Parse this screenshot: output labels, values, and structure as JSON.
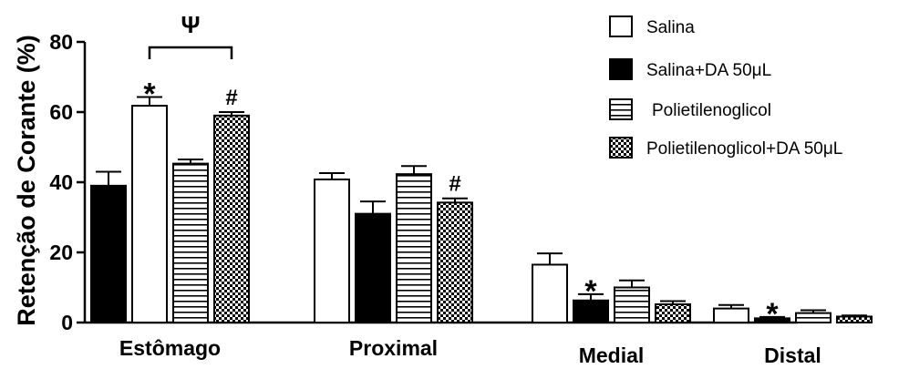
{
  "chart_data": {
    "type": "bar",
    "title": "",
    "xlabel": "",
    "ylabel": "Retenção de Corante (%)",
    "ylim": [
      0,
      80
    ],
    "yticks": [
      0,
      20,
      40,
      60,
      80
    ],
    "grid": false,
    "legend_position": "top-right",
    "categories": [
      "Estômago",
      "Proximal",
      "Medial",
      "Distal"
    ],
    "series": [
      {
        "name": "Salina",
        "fill": "white",
        "values": [
          61.8,
          40.8,
          16.5,
          4.0
        ],
        "errors": [
          2.5,
          1.8,
          3.2,
          1.0
        ]
      },
      {
        "name": "Salina+DA 50μL",
        "fill": "black",
        "values": [
          39.0,
          31.0,
          6.3,
          1.2
        ],
        "errors": [
          4.0,
          3.5,
          1.8,
          0.4
        ]
      },
      {
        "name": "Polietilenoglicol",
        "fill": "horizontal-stripes",
        "values": [
          45.3,
          42.3,
          10.0,
          2.7
        ],
        "errors": [
          1.2,
          2.3,
          2.0,
          0.8
        ]
      },
      {
        "name": "Polietilenoglicol+DA 50μL",
        "fill": "checkerboard",
        "values": [
          59.0,
          34.2,
          5.2,
          1.7
        ],
        "errors": [
          1.0,
          1.2,
          0.9,
          0.3
        ]
      }
    ],
    "bar_order": [
      [
        1,
        0,
        2,
        3
      ],
      [
        0,
        1,
        2,
        3
      ],
      [
        0,
        1,
        2,
        3
      ],
      [
        0,
        1,
        2,
        3
      ]
    ],
    "annotations": [
      {
        "text": "*",
        "category": 0,
        "series": 0
      },
      {
        "text": "#",
        "category": 0,
        "series": 3
      },
      {
        "text": "#",
        "category": 1,
        "series": 3
      },
      {
        "text": "*",
        "category": 2,
        "series": 1
      },
      {
        "text": "*",
        "category": 3,
        "series": 1
      },
      {
        "text": "Ψ",
        "bracket": {
          "category": 0,
          "from_series": 0,
          "to_series": 3
        }
      }
    ]
  }
}
